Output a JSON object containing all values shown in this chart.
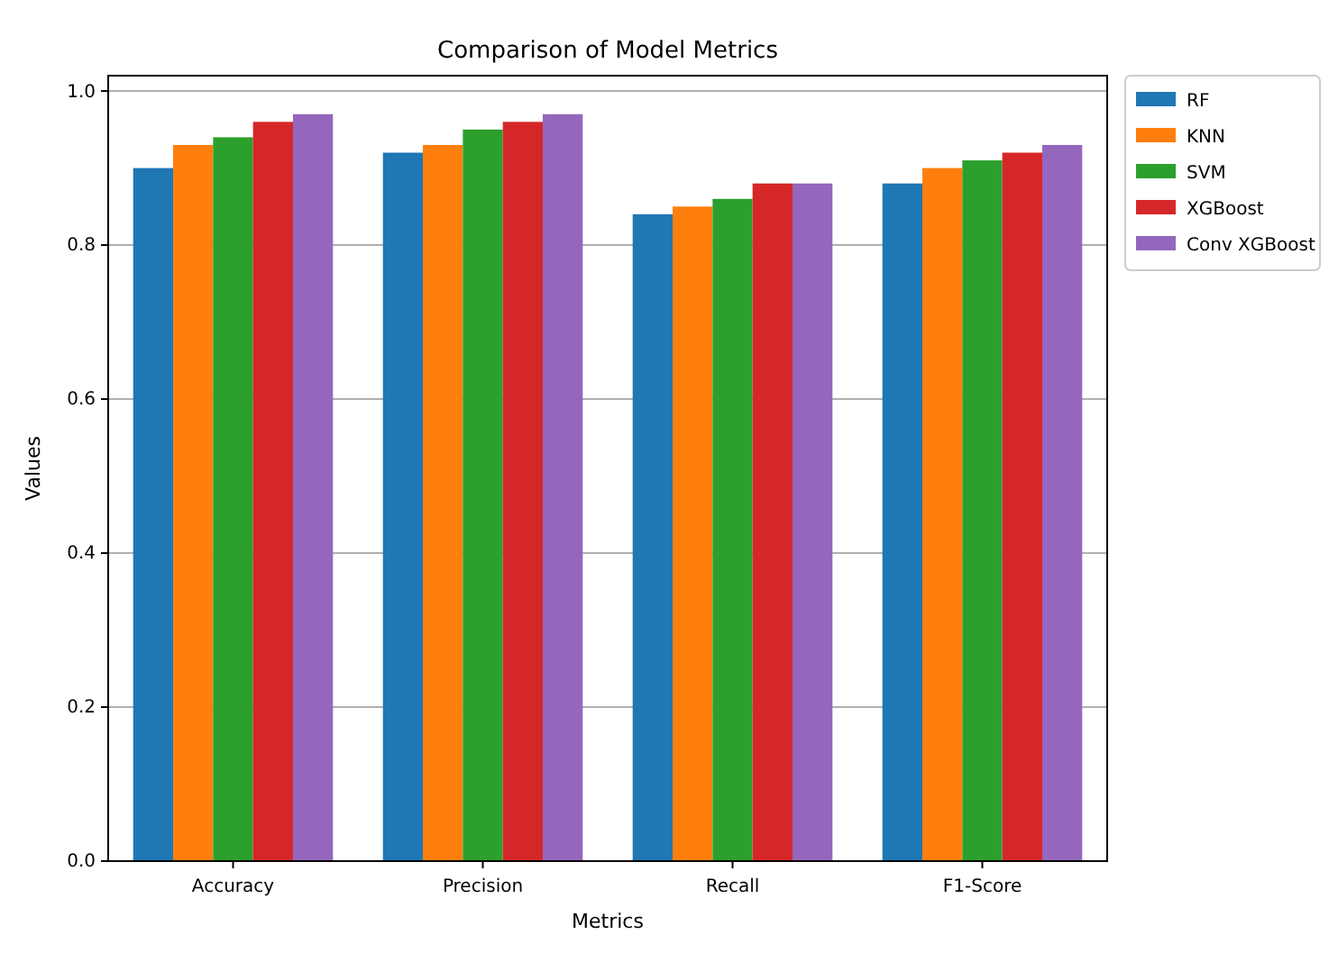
{
  "chart_data": {
    "type": "bar",
    "title": "Comparison of Model Metrics",
    "xlabel": "Metrics",
    "ylabel": "Values",
    "categories": [
      "Accuracy",
      "Precision",
      "Recall",
      "F1-Score"
    ],
    "series": [
      {
        "name": "RF",
        "color": "#1f77b4",
        "values": [
          0.9,
          0.92,
          0.84,
          0.88
        ]
      },
      {
        "name": "KNN",
        "color": "#ff7f0e",
        "values": [
          0.93,
          0.93,
          0.85,
          0.9
        ]
      },
      {
        "name": "SVM",
        "color": "#2ca02c",
        "values": [
          0.94,
          0.95,
          0.86,
          0.91
        ]
      },
      {
        "name": "XGBoost",
        "color": "#d62728",
        "values": [
          0.96,
          0.96,
          0.88,
          0.92
        ]
      },
      {
        "name": "Conv XGBoost",
        "color": "#9467bd",
        "values": [
          0.97,
          0.97,
          0.88,
          0.93
        ]
      }
    ],
    "ylim": [
      0,
      1.02
    ],
    "yticks": [
      {
        "value": 0,
        "label": "0.0"
      },
      0.2,
      0.4,
      0.6,
      0.8,
      {
        "value": 1,
        "label": "1.0"
      }
    ],
    "grid": "y",
    "legend": "top right"
  }
}
